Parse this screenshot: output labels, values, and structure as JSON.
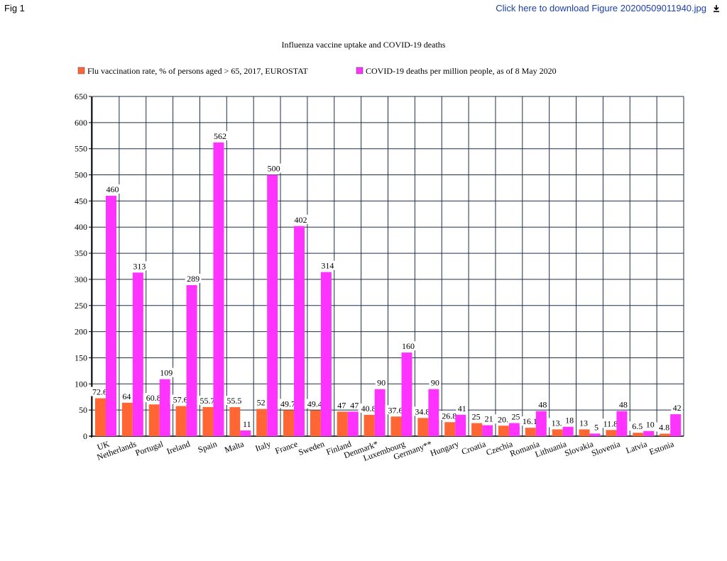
{
  "header": {
    "fig_label": "Fig 1",
    "download_text": "Click here to download Figure 20200509011940.jpg",
    "download_icon": "download-arrow-icon"
  },
  "chart_data": {
    "type": "bar",
    "title": "Influenza vaccine uptake and COVID-19 deaths",
    "xlabel": "",
    "ylabel": "",
    "ylim": [
      0,
      650
    ],
    "ytick_step": 50,
    "yticks": [
      "0",
      "50",
      "100",
      "150",
      "200",
      "250",
      "300",
      "350",
      "400",
      "450",
      "500",
      "550",
      "600",
      "650"
    ],
    "grid": true,
    "legend_position": "top",
    "categories": [
      "UK",
      "Netherlands",
      "Portugal",
      "Ireland",
      "Spain",
      "Malta",
      "Italy",
      "France",
      "Sweden",
      "Finland",
      "Denmark*",
      "Luxembourg",
      "Germany**",
      "Hungary",
      "Croatia",
      "Czechia",
      "Romania",
      "Lithuania",
      "Slovakia",
      "Slovenia",
      "Latvia",
      "Estonia"
    ],
    "series": [
      {
        "name": "Flu vaccination rate, % of persons aged > 65, 2017, EUROSTAT",
        "color": "#ff6633",
        "values": [
          72.6,
          64,
          60.8,
          57.6,
          55.7,
          55.5,
          52,
          49.7,
          49.4,
          47,
          40.8,
          37.6,
          34.8,
          26.8,
          25,
          20,
          16.1,
          13,
          13,
          11.8,
          6.5,
          4.8
        ],
        "labels": [
          "72.6",
          "64",
          "60.8",
          "57.6",
          "55.7",
          "55.5",
          "52",
          "49.7",
          "49.4",
          "47",
          "40.8",
          "37.6",
          "34.8",
          "26.8",
          "25",
          "20.",
          "16.1",
          "13.",
          "13",
          "11.8",
          "6.5",
          "4.8"
        ]
      },
      {
        "name": "COVID-19 deaths per million people, as of 8 May 2020",
        "color": "#ff33ff",
        "values": [
          460,
          313,
          109,
          289,
          562,
          11,
          500,
          402,
          314,
          47,
          90,
          160,
          90,
          41,
          21,
          25,
          48,
          18,
          5,
          48,
          10,
          42
        ],
        "labels": [
          "460",
          "313",
          "109",
          "289",
          "562",
          "11",
          "500",
          "402",
          "314",
          "47",
          "90",
          "160",
          "90",
          "41",
          "21",
          "25",
          "48",
          "18",
          "5",
          "48",
          "10",
          "42"
        ]
      }
    ]
  }
}
